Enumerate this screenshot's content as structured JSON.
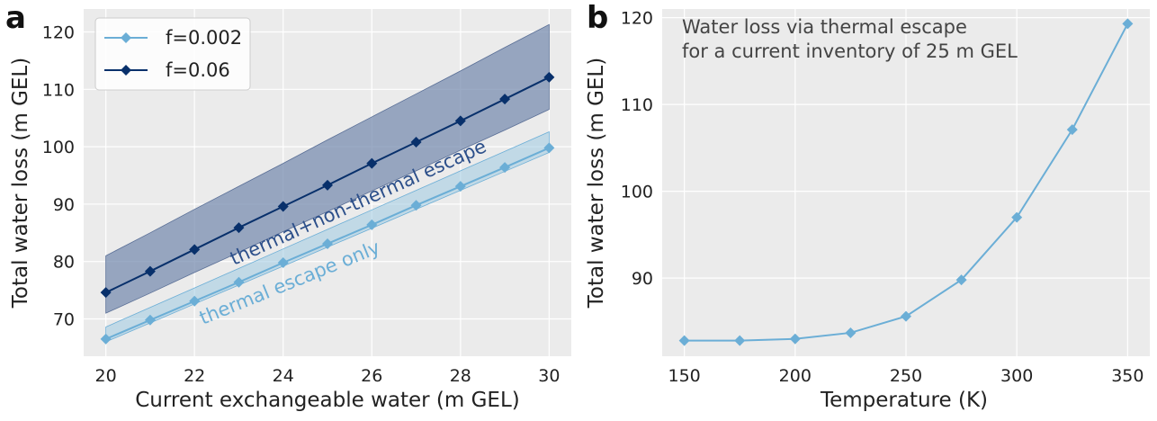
{
  "chart_data": [
    {
      "panel": "a",
      "type": "line",
      "xlabel": "Current exchangeable water (m GEL)",
      "ylabel": "Total water loss (m GEL)",
      "xlim": [
        19.5,
        30.5
      ],
      "ylim": [
        63.5,
        124
      ],
      "xticks": [
        20,
        22,
        24,
        26,
        28,
        30
      ],
      "yticks": [
        70,
        80,
        90,
        100,
        110,
        120
      ],
      "grid": true,
      "legend": "top-left",
      "x": [
        20,
        21,
        22,
        23,
        24,
        25,
        26,
        27,
        28,
        29,
        30
      ],
      "series": [
        {
          "name": "f=0.002",
          "color": "#6baed6",
          "values": [
            66.5,
            69.8,
            73.1,
            76.4,
            79.8,
            83.1,
            86.4,
            89.8,
            93.1,
            96.4,
            99.8
          ],
          "band_lower": [
            66.0,
            69.3,
            72.6,
            75.9,
            79.2,
            82.5,
            85.8,
            89.1,
            92.4,
            95.7,
            99.0
          ],
          "band_upper": [
            68.6,
            72.0,
            75.4,
            78.8,
            82.2,
            85.6,
            89.0,
            92.4,
            95.8,
            99.2,
            102.6
          ]
        },
        {
          "name": "f=0.06",
          "color": "#08306b",
          "values": [
            74.6,
            78.3,
            82.1,
            85.9,
            89.6,
            93.3,
            97.1,
            100.8,
            104.5,
            108.3,
            112.1
          ],
          "band_lower": [
            71.0,
            74.5,
            78.1,
            81.6,
            85.2,
            88.7,
            92.3,
            95.8,
            99.4,
            102.9,
            106.5
          ],
          "band_upper": [
            81.0,
            85.0,
            89.1,
            93.1,
            97.1,
            101.2,
            105.2,
            109.2,
            113.2,
            117.3,
            121.3
          ]
        }
      ],
      "annotations": [
        {
          "text": "thermal+non-thermal escape",
          "color": "#2c4f8a",
          "angle": -24.3,
          "x": 25.75,
          "y": 89.3
        },
        {
          "text": "thermal escape only",
          "color": "#6baed6",
          "angle": -22.1,
          "x": 24.2,
          "y": 75.3
        }
      ]
    },
    {
      "panel": "b",
      "type": "line",
      "xlabel": "Temperature (K)",
      "ylabel": "Total water loss (m GEL)",
      "xlim": [
        140,
        360
      ],
      "ylim": [
        81,
        121
      ],
      "xticks": [
        150,
        200,
        250,
        300,
        350
      ],
      "yticks": [
        90,
        100,
        110,
        120
      ],
      "grid": true,
      "annotation": [
        "Water loss via thermal escape",
        "for a current inventory of 25 m GEL"
      ],
      "series": [
        {
          "color": "#6baed6",
          "x": [
            150,
            175,
            200,
            225,
            250,
            275,
            300,
            325,
            350
          ],
          "values": [
            82.8,
            82.8,
            83.0,
            83.7,
            85.6,
            89.8,
            97.0,
            107.1,
            119.3
          ]
        }
      ]
    }
  ]
}
